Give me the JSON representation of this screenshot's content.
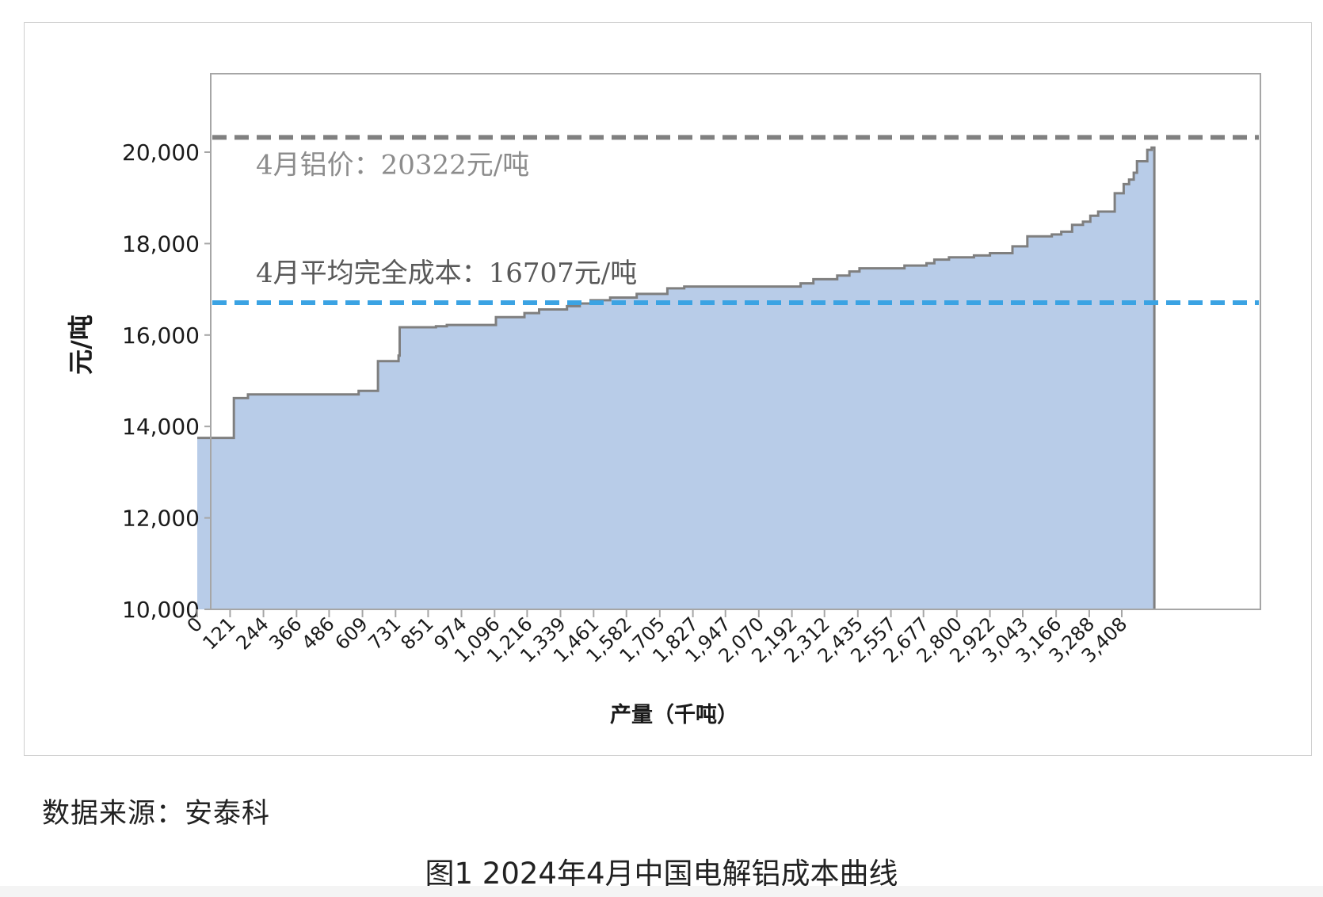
{
  "chart_data": {
    "type": "area",
    "subtype": "cost-curve-step",
    "title": "",
    "xlabel": "产量（千吨）",
    "ylabel": "元/吨",
    "ylim": [
      10000,
      21000
    ],
    "xlim": [
      0,
      3528
    ],
    "y_ticks": [
      "10,000",
      "12,000",
      "14,000",
      "16,000",
      "18,000",
      "20,000"
    ],
    "y_tick_values": [
      10000,
      12000,
      14000,
      16000,
      18000,
      20000
    ],
    "x_tick_labels": [
      "0",
      "121",
      "244",
      "366",
      "486",
      "609",
      "731",
      "851",
      "974",
      "1,096",
      "1,216",
      "1,339",
      "1,461",
      "1,582",
      "1,705",
      "1,827",
      "1,947",
      "2,070",
      "2,192",
      "2,312",
      "2,435",
      "2,557",
      "2,677",
      "2,800",
      "2,922",
      "3,043",
      "3,166",
      "3,288",
      "3,408"
    ],
    "x_tick_values": [
      0,
      121,
      244,
      366,
      486,
      609,
      731,
      851,
      974,
      1096,
      1216,
      1339,
      1461,
      1582,
      1705,
      1827,
      1947,
      2070,
      2192,
      2312,
      2435,
      2557,
      2677,
      2800,
      2922,
      3043,
      3166,
      3288,
      3408
    ],
    "series": [
      {
        "values": [
          [
            0,
            13750
          ],
          [
            135,
            13750
          ],
          [
            135,
            14620
          ],
          [
            187,
            14620
          ],
          [
            187,
            14700
          ],
          [
            595,
            14700
          ],
          [
            595,
            14780
          ],
          [
            666,
            14780
          ],
          [
            666,
            15430
          ],
          [
            742,
            15430
          ],
          [
            742,
            15550
          ],
          [
            746,
            15550
          ],
          [
            746,
            16170
          ],
          [
            880,
            16170
          ],
          [
            880,
            16190
          ],
          [
            920,
            16190
          ],
          [
            920,
            16220
          ],
          [
            1101,
            16220
          ],
          [
            1101,
            16390
          ],
          [
            1206,
            16390
          ],
          [
            1206,
            16480
          ],
          [
            1260,
            16480
          ],
          [
            1260,
            16560
          ],
          [
            1363,
            16560
          ],
          [
            1363,
            16630
          ],
          [
            1410,
            16630
          ],
          [
            1410,
            16690
          ],
          [
            1450,
            16690
          ],
          [
            1450,
            16760
          ],
          [
            1522,
            16760
          ],
          [
            1522,
            16820
          ],
          [
            1620,
            16820
          ],
          [
            1620,
            16900
          ],
          [
            1733,
            16900
          ],
          [
            1733,
            17020
          ],
          [
            1795,
            17020
          ],
          [
            1795,
            17060
          ],
          [
            2224,
            17060
          ],
          [
            2224,
            17130
          ],
          [
            2271,
            17130
          ],
          [
            2271,
            17220
          ],
          [
            2359,
            17220
          ],
          [
            2359,
            17300
          ],
          [
            2404,
            17300
          ],
          [
            2404,
            17390
          ],
          [
            2441,
            17390
          ],
          [
            2441,
            17460
          ],
          [
            2607,
            17460
          ],
          [
            2607,
            17520
          ],
          [
            2688,
            17520
          ],
          [
            2688,
            17570
          ],
          [
            2717,
            17570
          ],
          [
            2717,
            17650
          ],
          [
            2771,
            17650
          ],
          [
            2771,
            17700
          ],
          [
            2863,
            17700
          ],
          [
            2863,
            17740
          ],
          [
            2922,
            17740
          ],
          [
            2922,
            17790
          ],
          [
            3005,
            17790
          ],
          [
            3005,
            17940
          ],
          [
            3060,
            17940
          ],
          [
            3060,
            18160
          ],
          [
            3150,
            18160
          ],
          [
            3150,
            18200
          ],
          [
            3185,
            18200
          ],
          [
            3185,
            18260
          ],
          [
            3225,
            18260
          ],
          [
            3225,
            18410
          ],
          [
            3265,
            18410
          ],
          [
            3265,
            18480
          ],
          [
            3292,
            18480
          ],
          [
            3292,
            18610
          ],
          [
            3321,
            18610
          ],
          [
            3321,
            18700
          ],
          [
            3382,
            18700
          ],
          [
            3382,
            19100
          ],
          [
            3415,
            19100
          ],
          [
            3415,
            19300
          ],
          [
            3435,
            19300
          ],
          [
            3435,
            19400
          ],
          [
            3452,
            19400
          ],
          [
            3452,
            19550
          ],
          [
            3464,
            19550
          ],
          [
            3464,
            19800
          ],
          [
            3502,
            19800
          ],
          [
            3502,
            20050
          ],
          [
            3518,
            20050
          ],
          [
            3518,
            20100
          ],
          [
            3528,
            20100
          ]
        ],
        "color": "#b8cce8",
        "line_color": "#7f7f7f"
      }
    ],
    "reference_lines": [
      {
        "label": "4月铝价：20322元/吨",
        "value": 20322,
        "color": "#808080",
        "style": "dashed"
      },
      {
        "label": "4月平均完全成本：16707元/吨",
        "value": 16707,
        "color": "#3ba3e3",
        "style": "dashed"
      }
    ],
    "grid": false,
    "legend": "none"
  },
  "source_note": "数据来源：安泰科",
  "caption": "图1 2024年4月中国电解铝成本曲线"
}
